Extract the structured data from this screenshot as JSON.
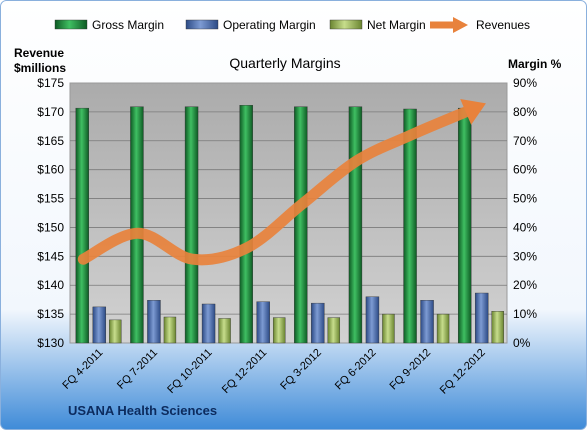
{
  "chart_data": {
    "type": "bar",
    "title": "Quarterly Margins",
    "footer": "USANA Health Sciences",
    "y_left_label_line1": "Revenue",
    "y_left_label_line2": "$millions",
    "y_right_label": "Margin %",
    "categories": [
      "FQ 4-2011",
      "FQ 7-2011",
      "FQ 10-2011",
      "FQ 12-2011",
      "FQ 3-2012",
      "FQ 6-2012",
      "FQ 9-2012",
      "FQ 12-2012"
    ],
    "y_left_ticks": [
      "$130",
      "$135",
      "$140",
      "$145",
      "$150",
      "$155",
      "$160",
      "$165",
      "$170",
      "$175"
    ],
    "y_left_range": [
      130,
      175
    ],
    "y_right_ticks": [
      "0%",
      "10%",
      "20%",
      "30%",
      "40%",
      "50%",
      "60%",
      "70%",
      "80%",
      "90%"
    ],
    "y_right_range": [
      0,
      90
    ],
    "grid": true,
    "legend_position": "top",
    "series": [
      {
        "name": "Gross Margin",
        "type": "bar",
        "axis": "right",
        "color": "#1f8a3c",
        "values": [
          81.3,
          81.8,
          81.8,
          82.3,
          81.8,
          81.8,
          81.0,
          81.3
        ]
      },
      {
        "name": "Operating Margin",
        "type": "bar",
        "axis": "right",
        "color": "#4f6fb0",
        "values": [
          12.5,
          14.8,
          13.5,
          14.3,
          13.8,
          16.0,
          14.8,
          17.3
        ]
      },
      {
        "name": "Net Margin",
        "type": "bar",
        "axis": "right",
        "color": "#9bbb59",
        "values": [
          8.0,
          9.0,
          8.5,
          8.8,
          8.8,
          10.0,
          10.0,
          11.0
        ]
      },
      {
        "name": "Revenues",
        "type": "line",
        "axis": "left",
        "color": "#e8823c",
        "values": [
          144.5,
          149.0,
          144.5,
          146.5,
          154.0,
          161.5,
          166.0,
          170.0
        ]
      }
    ]
  }
}
